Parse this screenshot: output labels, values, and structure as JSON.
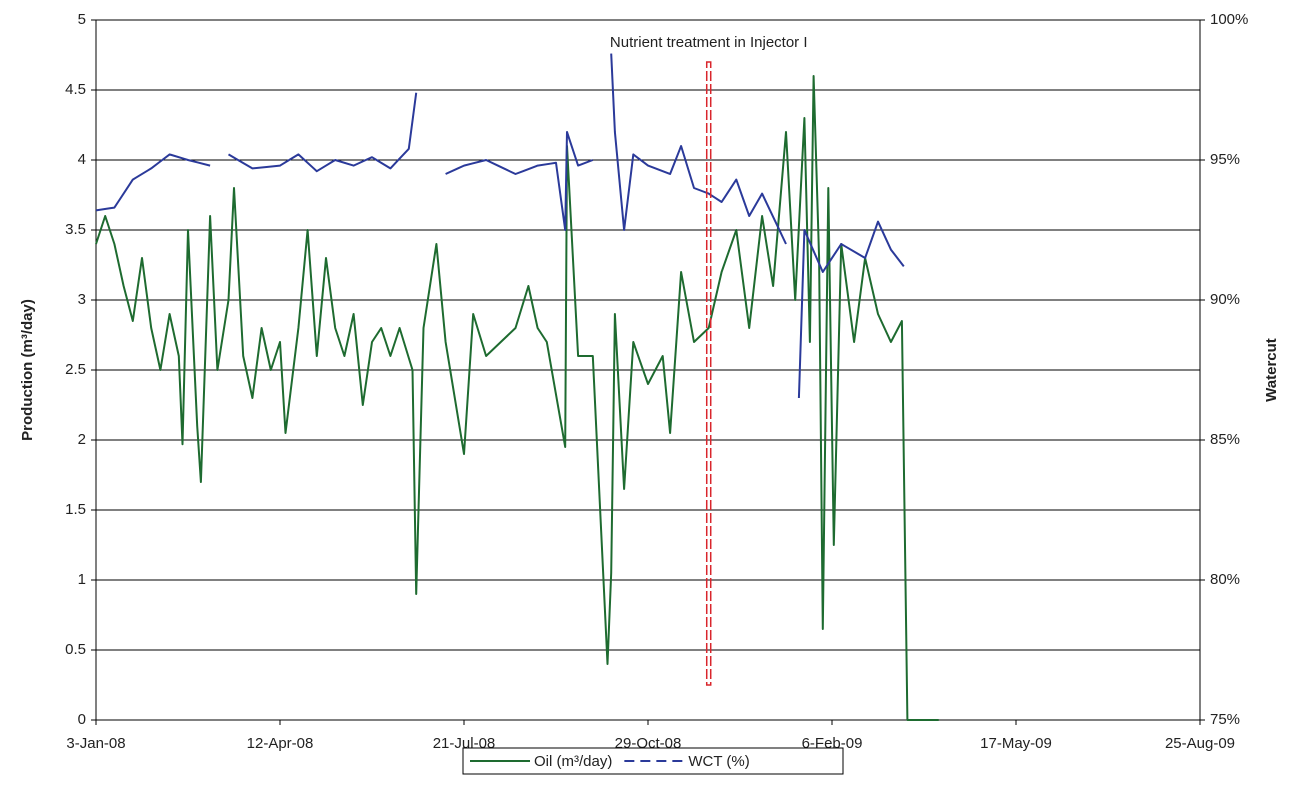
{
  "chart_data": {
    "type": "line",
    "ylabel": "Production (m³/day)",
    "y2label": "Watercut",
    "annotation": {
      "text": "Nutrient treatment in Injector I",
      "x": "2008-12-01",
      "y": [
        0.25,
        4.7
      ],
      "color": "#d9262c"
    },
    "xlim": [
      "2008-01-03",
      "2009-08-25"
    ],
    "xticks": [
      {
        "value": "2008-01-03",
        "label": "3-Jan-08"
      },
      {
        "value": "2008-04-12",
        "label": "12-Apr-08"
      },
      {
        "value": "2008-07-21",
        "label": "21-Jul-08"
      },
      {
        "value": "2008-10-29",
        "label": "29-Oct-08"
      },
      {
        "value": "2009-02-06",
        "label": "6-Feb-09"
      },
      {
        "value": "2009-05-17",
        "label": "17-May-09"
      },
      {
        "value": "2009-08-25",
        "label": "25-Aug-09"
      }
    ],
    "ylim": [
      0,
      5
    ],
    "yticks": [
      0,
      0.5,
      1,
      1.5,
      2,
      2.5,
      3,
      3.5,
      4,
      4.5,
      5
    ],
    "y2lim": [
      75,
      100
    ],
    "y2ticks": [
      {
        "value": 75,
        "label": "75%"
      },
      {
        "value": 80,
        "label": "80%"
      },
      {
        "value": 85,
        "label": "85%"
      },
      {
        "value": 90,
        "label": "90%"
      },
      {
        "value": 95,
        "label": "95%"
      },
      {
        "value": 100,
        "label": "100%"
      }
    ],
    "grid": true,
    "legend": "bottom",
    "series": [
      {
        "name": "Oil (m³/day)",
        "color": "#1e6b30",
        "dash": false,
        "x": [
          "2008-01-03",
          "2008-01-08",
          "2008-01-13",
          "2008-01-18",
          "2008-01-23",
          "2008-01-28",
          "2008-02-02",
          "2008-02-07",
          "2008-02-12",
          "2008-02-17",
          "2008-02-19",
          "2008-02-22",
          "2008-02-27",
          "2008-02-29",
          "2008-03-05",
          "2008-03-09",
          "2008-03-15",
          "2008-03-18",
          "2008-03-23",
          "2008-03-28",
          "2008-04-02",
          "2008-04-07",
          "2008-04-12",
          "2008-04-15",
          "2008-04-22",
          "2008-04-27",
          "2008-05-02",
          "2008-05-07",
          "2008-05-12",
          "2008-05-17",
          "2008-05-22",
          "2008-05-27",
          "2008-06-01",
          "2008-06-06",
          "2008-06-11",
          "2008-06-16",
          "2008-06-23",
          "2008-06-25",
          "2008-06-29",
          "2008-07-06",
          "2008-07-11",
          "2008-07-21",
          "2008-07-26",
          "2008-08-02",
          "2008-08-10",
          "2008-08-18",
          "2008-08-25",
          "2008-08-30",
          "2008-09-04",
          "2008-09-14",
          "2008-09-15",
          "2008-09-21",
          "2008-09-29",
          "2008-10-07",
          "2008-10-09",
          "2008-10-11",
          "2008-10-16",
          "2008-10-21",
          "2008-10-29",
          "2008-11-06",
          "2008-11-10",
          "2008-11-16",
          "2008-11-23",
          "2008-12-01",
          "2008-12-08",
          "2008-12-16",
          "2008-12-23",
          "2008-12-30",
          "2009-01-05",
          "2009-01-12",
          "2009-01-17",
          "2009-01-22",
          "2009-01-25",
          "2009-01-27",
          "2009-01-30",
          "2009-02-01",
          "2009-02-04",
          "2009-02-07",
          "2009-02-11",
          "2009-02-18",
          "2009-02-24",
          "2009-03-03",
          "2009-03-10",
          "2009-03-16",
          "2009-03-19",
          "2009-04-05"
        ],
        "values": [
          3.4,
          3.6,
          3.4,
          3.1,
          2.85,
          3.3,
          2.8,
          2.5,
          2.9,
          2.6,
          1.97,
          3.5,
          2.1,
          1.7,
          3.6,
          2.5,
          3.0,
          3.8,
          2.6,
          2.3,
          2.8,
          2.5,
          2.7,
          2.05,
          2.8,
          3.5,
          2.6,
          3.3,
          2.8,
          2.6,
          2.9,
          2.25,
          2.7,
          2.8,
          2.6,
          2.8,
          2.5,
          0.9,
          2.8,
          3.4,
          2.7,
          1.9,
          2.9,
          2.6,
          2.7,
          2.8,
          3.1,
          2.8,
          2.7,
          1.95,
          4.1,
          2.6,
          2.6,
          0.4,
          1.05,
          2.9,
          1.65,
          2.7,
          2.4,
          2.6,
          2.05,
          3.2,
          2.7,
          2.8,
          3.2,
          3.5,
          2.8,
          3.6,
          3.1,
          4.2,
          3.0,
          4.3,
          2.7,
          4.6,
          3.3,
          0.65,
          3.8,
          1.25,
          3.4,
          2.7,
          3.3,
          2.9,
          2.7,
          2.85,
          0,
          0
        ]
      },
      {
        "name": "WCT (%)",
        "color": "#2b3a9a",
        "dash": true,
        "axis": "y2",
        "x": [
          "2008-01-03",
          "2008-01-13",
          "2008-01-23",
          "2008-02-02",
          "2008-02-12",
          "2008-02-22",
          "2008-03-05",
          "2008-03-09",
          "2008-03-15",
          "2008-03-28",
          "2008-04-12",
          "2008-04-22",
          "2008-05-02",
          "2008-05-12",
          "2008-05-22",
          "2008-06-01",
          "2008-06-11",
          "2008-06-21",
          "2008-06-25",
          "2008-07-06",
          "2008-07-11",
          "2008-07-21",
          "2008-08-02",
          "2008-08-18",
          "2008-08-30",
          "2008-09-09",
          "2008-09-14",
          "2008-09-15",
          "2008-09-21",
          "2008-09-29",
          "2008-10-07",
          "2008-10-09",
          "2008-10-11",
          "2008-10-16",
          "2008-10-21",
          "2008-10-29",
          "2008-11-10",
          "2008-11-16",
          "2008-11-23",
          "2008-12-01",
          "2008-12-08",
          "2008-12-16",
          "2008-12-23",
          "2008-12-30",
          "2009-01-12",
          "2009-01-15",
          "2009-01-19",
          "2009-01-22",
          "2009-02-01",
          "2009-02-11",
          "2009-02-24",
          "2009-03-03",
          "2009-03-10",
          "2009-03-17"
        ],
        "values": [
          93.2,
          93.3,
          94.3,
          94.7,
          95.2,
          95.0,
          94.8,
          null,
          95.2,
          94.7,
          94.8,
          95.2,
          94.6,
          95.0,
          94.8,
          95.1,
          94.7,
          95.4,
          97.4,
          null,
          94.5,
          94.8,
          95.0,
          94.5,
          94.8,
          94.9,
          92.5,
          96.0,
          94.8,
          95.0,
          null,
          98.8,
          96.0,
          92.5,
          95.2,
          94.8,
          94.5,
          95.5,
          94.0,
          93.8,
          93.5,
          94.3,
          93.0,
          93.8,
          92.0,
          null,
          86.5,
          92.5,
          91.0,
          92.0,
          91.5,
          92.8,
          91.8,
          91.2
        ]
      }
    ]
  }
}
